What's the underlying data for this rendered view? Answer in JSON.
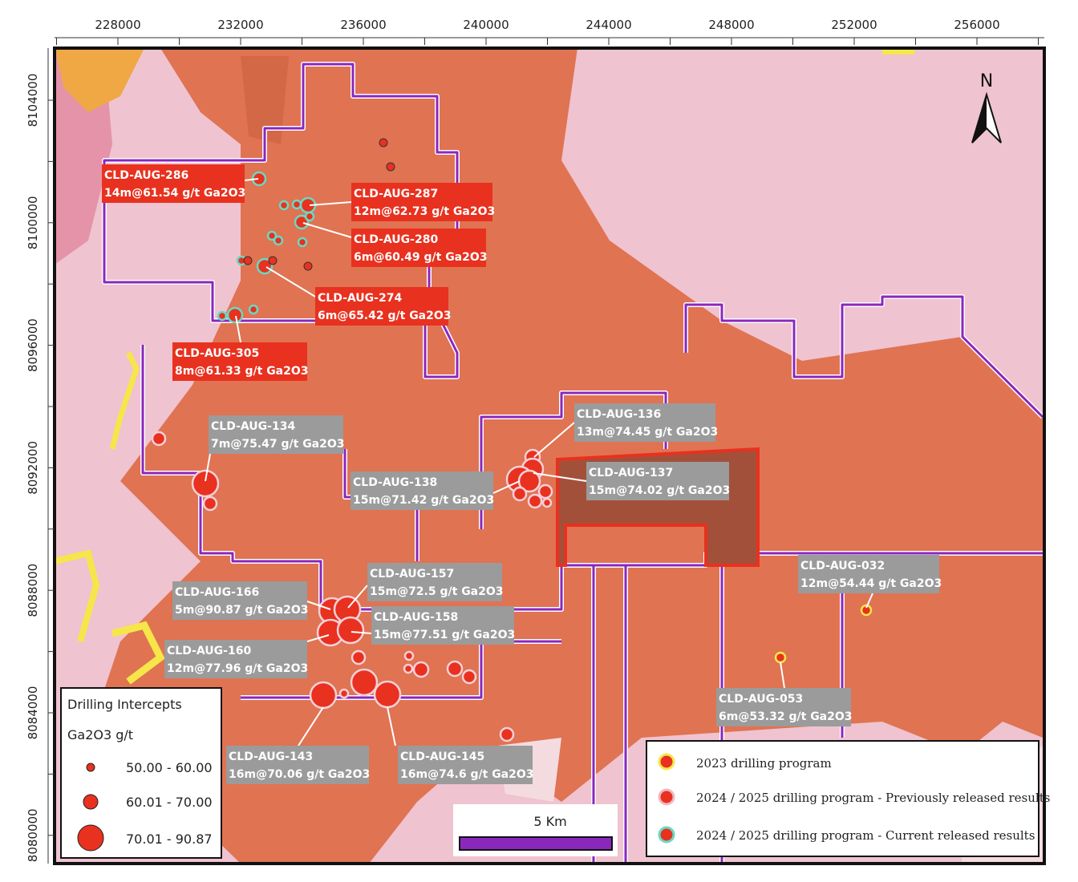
{
  "axes": {
    "x_ticks": [
      228000,
      232000,
      236000,
      240000,
      244000,
      248000,
      252000,
      256000
    ],
    "y_ticks": [
      8104000,
      8100000,
      8096000,
      8092000,
      8088000,
      8084000,
      8080000
    ]
  },
  "north": "N",
  "callouts": [
    {
      "hole": "CLD-AUG-286",
      "intercept": "14m@61.54 g/t Ga2O3"
    },
    {
      "hole": "CLD-AUG-287",
      "intercept": "12m@62.73 g/t Ga2O3"
    },
    {
      "hole": "CLD-AUG-280",
      "intercept": "6m@60.49 g/t Ga2O3"
    },
    {
      "hole": "CLD-AUG-274",
      "intercept": "6m@65.42 g/t Ga2O3"
    },
    {
      "hole": "CLD-AUG-305",
      "intercept": "8m@61.33 g/t Ga2O3"
    },
    {
      "hole": "CLD-AUG-134",
      "intercept": "7m@75.47 g/t Ga2O3"
    },
    {
      "hole": "CLD-AUG-136",
      "intercept": "13m@74.45 g/t Ga2O3"
    },
    {
      "hole": "CLD-AUG-137",
      "intercept": "15m@74.02 g/t Ga2O3"
    },
    {
      "hole": "CLD-AUG-138",
      "intercept": "15m@71.42 g/t Ga2O3"
    },
    {
      "hole": "CLD-AUG-157",
      "intercept": "15m@72.5 g/t Ga2O3"
    },
    {
      "hole": "CLD-AUG-166",
      "intercept": "5m@90.87 g/t Ga2O3"
    },
    {
      "hole": "CLD-AUG-158",
      "intercept": "15m@77.51 g/t Ga2O3"
    },
    {
      "hole": "CLD-AUG-160",
      "intercept": "12m@77.96 g/t Ga2O3"
    },
    {
      "hole": "CLD-AUG-032",
      "intercept": "12m@54.44 g/t Ga2O3"
    },
    {
      "hole": "CLD-AUG-053",
      "intercept": "6m@53.32 g/t Ga2O3"
    },
    {
      "hole": "CLD-AUG-143",
      "intercept": "16m@70.06 g/t Ga2O3"
    },
    {
      "hole": "CLD-AUG-145",
      "intercept": "16m@74.6 g/t Ga2O3"
    }
  ],
  "legend": {
    "title": "Drilling Intercepts",
    "unit": "Ga2O3 g/t",
    "classes": [
      "50.00 - 60.00",
      "60.01 - 70.00",
      "70.01 - 90.87"
    ]
  },
  "programs": [
    "2023 drilling program",
    "2024 / 2025 drilling program - Previously released results",
    "2024 / 2025 drilling program - Current released results"
  ],
  "scale_bar": "5 Km"
}
